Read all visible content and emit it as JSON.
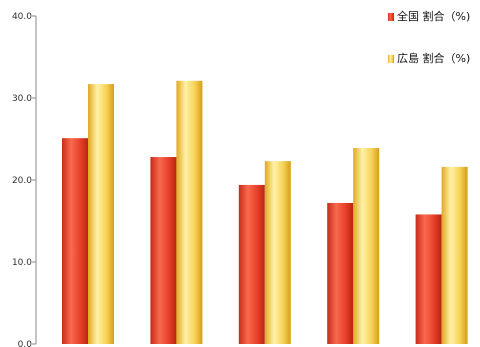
{
  "chart_data": {
    "type": "bar",
    "categories": [
      "",
      "",
      "",
      "",
      ""
    ],
    "series": [
      {
        "name": "全国 割合（%)",
        "values": [
          25.1,
          22.8,
          19.4,
          17.2,
          15.8
        ],
        "color": "#e8412a"
      },
      {
        "name": "広島 割合（%)",
        "values": [
          31.7,
          32.1,
          22.3,
          23.9,
          21.6
        ],
        "color": "#f5c542"
      }
    ],
    "yticks": [
      "0.0",
      "10.0",
      "20.0",
      "30.0",
      "40.0"
    ],
    "ylim": [
      0,
      40
    ],
    "title": "",
    "xlabel": "",
    "ylabel": "",
    "grid": false,
    "legend_position": "top-right"
  }
}
